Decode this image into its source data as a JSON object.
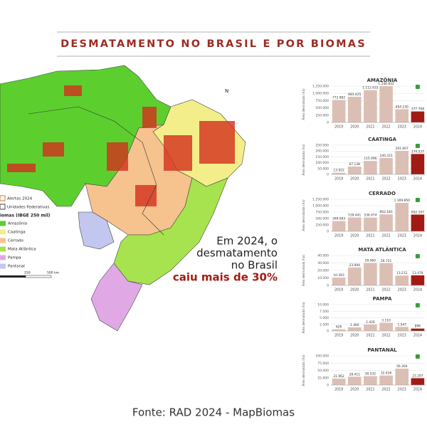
{
  "title": "DESMATAMENTO NO BRASIL E POR BIOMAS",
  "source": "Fonte: RAD 2024 - MapBiomas",
  "annotation": {
    "lines": [
      "Em 2024, o",
      "desmatamento",
      "no Brasil"
    ],
    "highlight": "caiu mais de 30%"
  },
  "map": {
    "north": "N",
    "legend": [
      "Alertas 2024",
      "Unidades Federativas"
    ],
    "biome_legend_title": "iomas (IBGE 250 mil)",
    "biomes": [
      {
        "name": "Amazônia",
        "color": "#5ccf2e"
      },
      {
        "name": "Caatinga",
        "color": "#f4ee8a"
      },
      {
        "name": "Cerrado",
        "color": "#f6c28e"
      },
      {
        "name": "Mata Atlântica",
        "color": "#a6e34e"
      },
      {
        "name": "Pampa",
        "color": "#e0a9e6"
      },
      {
        "name": "Pantanal",
        "color": "#c3c6ef"
      }
    ],
    "scale": [
      "250",
      "500 km"
    ]
  },
  "chart_data": [
    {
      "type": "bar",
      "title": "AMAZÔNIA",
      "y_label": "Área desmatada (ha)",
      "categories": [
        "2019",
        "2020",
        "2021",
        "2022",
        "2023",
        "2024"
      ],
      "values": [
        772882,
        883425,
        1112633,
        1246832,
        454230,
        377708
      ],
      "value_labels": [
        "772 882",
        "883.425",
        "1.112.633",
        "1.246.832",
        "454 230",
        "377.708"
      ],
      "color": "#dcbfb4",
      "highlight_color": "#a11b14",
      "ylim": [
        0,
        1250000
      ],
      "yticks": [
        0,
        {
          "value": 250000,
          "label": "250.000"
        },
        {
          "value": 500000,
          "label": "500.000"
        },
        {
          "value": 750000,
          "label": "750.000"
        },
        {
          "value": 1000000,
          "label": "1.000.000"
        },
        {
          "value": 1250000,
          "label": "1.250.000"
        }
      ]
    },
    {
      "type": "bar",
      "title": "CAATINGA",
      "y_label": "Área desmatada (ha)",
      "categories": [
        "2019",
        "2020",
        "2021",
        "2022",
        "2023",
        "2024"
      ],
      "values": [
        13922,
        67138,
        115096,
        140331,
        201607,
        174537
      ],
      "value_labels": [
        "13.922",
        "67.138",
        "115.096",
        "140.331",
        "201.607",
        "174.537"
      ],
      "color": "#dcbfb4",
      "highlight_color": "#a11b14",
      "ylim": [
        0,
        250000
      ],
      "yticks": [
        0,
        {
          "value": 50000,
          "label": "50.000"
        },
        {
          "value": 100000,
          "label": "100.000"
        },
        {
          "value": 150000,
          "label": "150.000"
        },
        {
          "value": 200000,
          "label": "200.000"
        },
        {
          "value": 250000,
          "label": "250.000"
        }
      ]
    },
    {
      "type": "bar",
      "title": "CERRADO",
      "y_label": "Área desmatada (ha)",
      "categories": [
        "2019",
        "2020",
        "2021",
        "2022",
        "2023",
        "2024"
      ],
      "values": [
        399583,
        539441,
        536474,
        662181,
        1109850,
        652197
      ],
      "value_labels": [
        "399.583",
        "539.441",
        "536.474",
        "662.181",
        "1.109.850",
        "652.197"
      ],
      "color": "#dcbfb4",
      "highlight_color": "#a11b14",
      "ylim": [
        0,
        1250000
      ],
      "yticks": [
        0,
        {
          "value": 250000,
          "label": "250.000"
        },
        {
          "value": 500000,
          "label": "500.000"
        },
        {
          "value": 750000,
          "label": "750.000"
        },
        {
          "value": 1000000,
          "label": "1.000.000"
        },
        {
          "value": 1250000,
          "label": "1.250.000"
        }
      ]
    },
    {
      "type": "bar",
      "title": "MATA ATLÂNTICA",
      "y_label": "Área desmatada (ha)",
      "categories": [
        "2019",
        "2020",
        "2021",
        "2022",
        "2023",
        "2024"
      ],
      "values": [
        10393,
        23994,
        29960,
        29721,
        13212,
        13478
      ],
      "value_labels": [
        "10.393",
        "23.994",
        "29.960",
        "29.721",
        "13.212",
        "13.478"
      ],
      "color": "#dcbfb4",
      "highlight_color": "#a11b14",
      "ylim": [
        0,
        40000
      ],
      "yticks": [
        0,
        {
          "value": 10000,
          "label": "10.000"
        },
        {
          "value": 20000,
          "label": "20.000"
        },
        {
          "value": 30000,
          "label": "30.000"
        },
        {
          "value": 40000,
          "label": "40.000"
        }
      ]
    },
    {
      "type": "bar",
      "title": "PAMPA",
      "y_label": "Área desmatada (ha)",
      "categories": [
        "2019",
        "2020",
        "2021",
        "2022",
        "2023",
        "2024"
      ],
      "values": [
        626,
        1360,
        2426,
        3110,
        1547,
        896
      ],
      "value_labels": [
        "626",
        "1.360",
        "2.426",
        "3.110",
        "1.547",
        "896"
      ],
      "color": "#dcbfb4",
      "highlight_color": "#a11b14",
      "ylim": [
        0,
        10000
      ],
      "yticks": [
        0,
        {
          "value": 2500,
          "label": "2.500"
        },
        {
          "value": 5000,
          "label": "5.000"
        },
        {
          "value": 7500,
          "label": "7.500"
        },
        {
          "value": 10000,
          "label": "10.000"
        }
      ]
    },
    {
      "type": "bar",
      "title": "PANTANAL",
      "y_label": "Área desmatada (ha)",
      "categories": [
        "2019",
        "2020",
        "2021",
        "2022",
        "2023",
        "2024"
      ],
      "values": [
        21962,
        28411,
        30532,
        32436,
        56304,
        23297
      ],
      "value_labels": [
        "21.962",
        "28.411",
        "30.532",
        "32.436",
        "56.304",
        "23.297"
      ],
      "color": "#dcbfb4",
      "highlight_color": "#a11b14",
      "ylim": [
        0,
        100000
      ],
      "yticks": [
        0,
        {
          "value": 25000,
          "label": "25.000"
        },
        {
          "value": 50000,
          "label": "50.000"
        },
        {
          "value": 75000,
          "label": "75.000"
        },
        {
          "value": 100000,
          "label": "100.000"
        }
      ]
    }
  ]
}
